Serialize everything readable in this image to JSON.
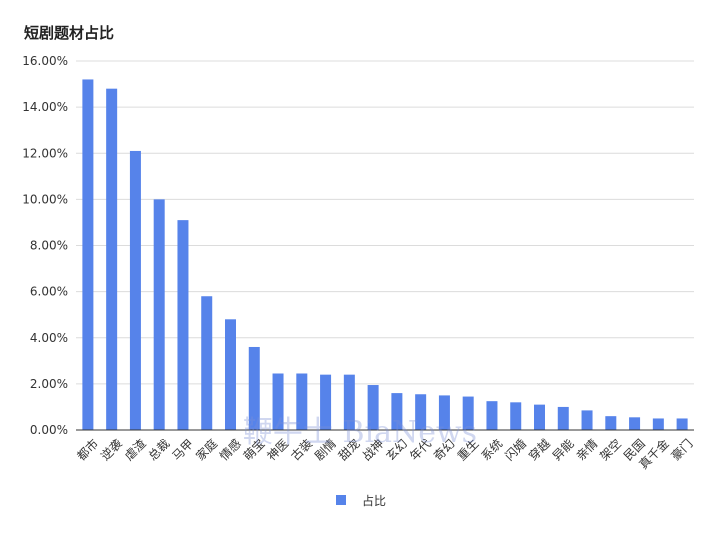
{
  "title": "短剧题材占比",
  "watermark": "鞭牛士 BiaNews",
  "colors": {
    "bar": "#5683ea",
    "grid": "#dcdcdc",
    "axis": "#333333"
  },
  "chart_data": {
    "type": "bar",
    "title": "短剧题材占比",
    "xlabel": "",
    "ylabel": "",
    "ylim": [
      0,
      16
    ],
    "yticks": [
      "0.00%",
      "2.00%",
      "4.00%",
      "6.00%",
      "8.00%",
      "10.00%",
      "12.00%",
      "14.00%",
      "16.00%"
    ],
    "grid": true,
    "legend_position": "bottom",
    "categories": [
      "都市",
      "逆袭",
      "虐渣",
      "总裁",
      "马甲",
      "家庭",
      "情感",
      "萌宝",
      "神医",
      "古装",
      "剧情",
      "甜宠",
      "战神",
      "玄幻",
      "年代",
      "奇幻",
      "重生",
      "系统",
      "闪婚",
      "穿越",
      "异能",
      "亲情",
      "架空",
      "民国",
      "真千金",
      "豪门"
    ],
    "series": [
      {
        "name": "占比",
        "values": [
          15.2,
          14.8,
          12.1,
          10.0,
          9.1,
          5.8,
          4.8,
          3.6,
          2.45,
          2.45,
          2.4,
          2.4,
          1.95,
          1.6,
          1.55,
          1.5,
          1.45,
          1.25,
          1.2,
          1.1,
          1.0,
          0.85,
          0.6,
          0.55,
          0.5,
          0.5
        ]
      }
    ]
  }
}
